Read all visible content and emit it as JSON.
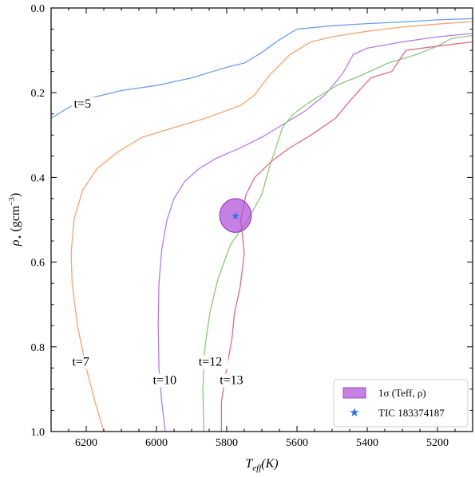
{
  "chart_data": {
    "type": "line",
    "xlabel_main": "T",
    "xlabel_sub": "eff",
    "xlabel_unit": "(K)",
    "ylabel_symbol": "ρ",
    "ylabel_sub": "⋆",
    "ylabel_unit": "(gcm",
    "ylabel_exp": "−3",
    "ylabel_close": ")",
    "xlim": [
      6300,
      5100
    ],
    "ylim": [
      0.0,
      1.0
    ],
    "y_inverted": true,
    "x_inverted": true,
    "xticks": [
      6200,
      6000,
      5800,
      5600,
      5400,
      5200
    ],
    "yticks": [
      0.0,
      0.2,
      0.4,
      0.6,
      0.8,
      1.0
    ],
    "ytick_labels": [
      "0.0",
      "0.2",
      "0.4",
      "0.6",
      "0.8",
      "1.0"
    ],
    "grid": false,
    "legend_position": "bottom-right",
    "series": [
      {
        "name": "t=5",
        "color": "#6d9eeb",
        "label_at": {
          "x": 6235,
          "y": 0.235
        },
        "points": [
          [
            6300,
            0.26
          ],
          [
            6250,
            0.235
          ],
          [
            6200,
            0.215
          ],
          [
            6100,
            0.195
          ],
          [
            6000,
            0.183
          ],
          [
            5900,
            0.165
          ],
          [
            5800,
            0.14
          ],
          [
            5750,
            0.13
          ],
          [
            5700,
            0.105
          ],
          [
            5650,
            0.075
          ],
          [
            5600,
            0.05
          ],
          [
            5500,
            0.042
          ],
          [
            5400,
            0.037
          ],
          [
            5300,
            0.033
          ],
          [
            5200,
            0.028
          ],
          [
            5100,
            0.025
          ]
        ]
      },
      {
        "name": "t=7",
        "color": "#f6a36f",
        "label_at": {
          "x": 6240,
          "y": 0.845
        },
        "points": [
          [
            6150,
            1.0
          ],
          [
            6175,
            0.93
          ],
          [
            6200,
            0.85
          ],
          [
            6225,
            0.75
          ],
          [
            6240,
            0.65
          ],
          [
            6243,
            0.58
          ],
          [
            6235,
            0.5
          ],
          [
            6210,
            0.43
          ],
          [
            6170,
            0.38
          ],
          [
            6110,
            0.34
          ],
          [
            6040,
            0.305
          ],
          [
            5960,
            0.285
          ],
          [
            5860,
            0.26
          ],
          [
            5760,
            0.23
          ],
          [
            5720,
            0.205
          ],
          [
            5680,
            0.16
          ],
          [
            5620,
            0.11
          ],
          [
            5560,
            0.08
          ],
          [
            5500,
            0.068
          ],
          [
            5400,
            0.055
          ],
          [
            5300,
            0.045
          ],
          [
            5200,
            0.038
          ],
          [
            5100,
            0.032
          ]
        ]
      },
      {
        "name": "t=10",
        "color": "#b87be8",
        "label_at": {
          "x": 6010,
          "y": 0.888
        },
        "points": [
          [
            5975,
            1.0
          ],
          [
            5985,
            0.93
          ],
          [
            5993,
            0.85
          ],
          [
            5995,
            0.75
          ],
          [
            5993,
            0.65
          ],
          [
            5985,
            0.57
          ],
          [
            5970,
            0.5
          ],
          [
            5950,
            0.45
          ],
          [
            5920,
            0.41
          ],
          [
            5880,
            0.38
          ],
          [
            5830,
            0.355
          ],
          [
            5760,
            0.33
          ],
          [
            5700,
            0.305
          ],
          [
            5640,
            0.275
          ],
          [
            5580,
            0.245
          ],
          [
            5520,
            0.205
          ],
          [
            5470,
            0.155
          ],
          [
            5440,
            0.11
          ],
          [
            5400,
            0.095
          ],
          [
            5300,
            0.08
          ],
          [
            5200,
            0.068
          ],
          [
            5100,
            0.06
          ]
        ]
      },
      {
        "name": "t=12",
        "color": "#8cc77a",
        "label_at": {
          "x": 5880,
          "y": 0.845
        },
        "points": [
          [
            5865,
            1.0
          ],
          [
            5868,
            0.9
          ],
          [
            5862,
            0.8
          ],
          [
            5848,
            0.72
          ],
          [
            5825,
            0.64
          ],
          [
            5790,
            0.56
          ],
          [
            5740,
            0.5
          ],
          [
            5700,
            0.44
          ],
          [
            5680,
            0.38
          ],
          [
            5660,
            0.33
          ],
          [
            5640,
            0.28
          ],
          [
            5610,
            0.25
          ],
          [
            5560,
            0.22
          ],
          [
            5480,
            0.18
          ],
          [
            5420,
            0.16
          ],
          [
            5340,
            0.13
          ],
          [
            5260,
            0.11
          ],
          [
            5200,
            0.09
          ],
          [
            5160,
            0.072
          ],
          [
            5100,
            0.065
          ]
        ]
      },
      {
        "name": "t=13",
        "color": "#e06b8b",
        "label_at": {
          "x": 5820,
          "y": 0.888
        },
        "points": [
          [
            5815,
            1.0
          ],
          [
            5815,
            0.93
          ],
          [
            5800,
            0.85
          ],
          [
            5785,
            0.78
          ],
          [
            5778,
            0.72
          ],
          [
            5762,
            0.66
          ],
          [
            5750,
            0.58
          ],
          [
            5760,
            0.5
          ],
          [
            5745,
            0.44
          ],
          [
            5720,
            0.4
          ],
          [
            5670,
            0.36
          ],
          [
            5620,
            0.33
          ],
          [
            5560,
            0.3
          ],
          [
            5490,
            0.26
          ],
          [
            5450,
            0.22
          ],
          [
            5390,
            0.165
          ],
          [
            5330,
            0.15
          ],
          [
            5290,
            0.1
          ],
          [
            5200,
            0.09
          ],
          [
            5100,
            0.08
          ]
        ]
      }
    ],
    "ellipse": {
      "label": "1σ (Teff, ρ)",
      "color": "#b04fd8",
      "center": {
        "x": 5775,
        "y": 0.49
      },
      "half_width": 45,
      "half_height": 0.04
    },
    "target": {
      "label": "TIC 183374187",
      "color": "#2f6fea",
      "x": 5775,
      "y": 0.49
    }
  }
}
